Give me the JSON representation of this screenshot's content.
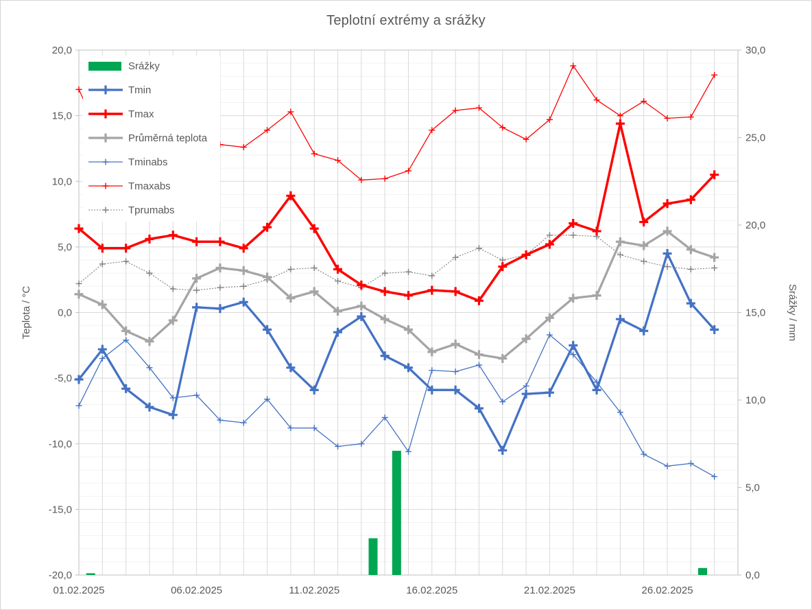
{
  "title": "Teplotní extrémy a srážky",
  "axes": {
    "y_left": {
      "title": "Teplota / °C",
      "min": -20,
      "max": 20,
      "major_step": 5,
      "minor_step": 1,
      "tick_labels": [
        "20,0",
        "15,0",
        "10,0",
        "5,0",
        "0,0",
        "-5,0",
        "-10,0",
        "-15,0",
        "-20,0"
      ]
    },
    "y_right": {
      "title": "Srážky / mm",
      "min": 0,
      "max": 30,
      "major_step": 5,
      "tick_labels": [
        "30,0",
        "25,0",
        "20,0",
        "15,0",
        "10,0",
        "5,0",
        "0,0"
      ]
    },
    "x": {
      "tick_labels": [
        "01.02.2025",
        "06.02.2025",
        "11.02.2025",
        "16.02.2025",
        "21.02.2025",
        "26.02.2025"
      ],
      "tick_days": [
        1,
        6,
        11,
        16,
        21,
        26
      ]
    }
  },
  "legend": [
    "Srážky",
    "Tmin",
    "Tmax",
    "Průměrná teplota",
    "Tminabs",
    "Tmaxabs",
    "Tprumabs"
  ],
  "colors": {
    "grid_major": "#d9d9d9",
    "grid_minor": "#f2f2f2",
    "axis_line": "#bfbfbf",
    "text": "#595959",
    "background": "#ffffff"
  },
  "chart_data": {
    "type": "combo",
    "categories": [
      "01.02.2025",
      "02.02.2025",
      "03.02.2025",
      "04.02.2025",
      "05.02.2025",
      "06.02.2025",
      "07.02.2025",
      "08.02.2025",
      "09.02.2025",
      "10.02.2025",
      "11.02.2025",
      "12.02.2025",
      "13.02.2025",
      "14.02.2025",
      "15.02.2025",
      "16.02.2025",
      "17.02.2025",
      "18.02.2025",
      "19.02.2025",
      "20.02.2025",
      "21.02.2025",
      "22.02.2025",
      "23.02.2025",
      "24.02.2025",
      "25.02.2025",
      "26.02.2025",
      "27.02.2025",
      "28.02.2025"
    ],
    "series": [
      {
        "name": "Srážky",
        "type": "bar",
        "axis": "right",
        "color": "#00a651",
        "marker": "none",
        "values": [
          0.1,
          0,
          0,
          0,
          0,
          0,
          0,
          0,
          0,
          0,
          0,
          0,
          2.1,
          7.1,
          0,
          0,
          0,
          0,
          0,
          0,
          0,
          0,
          0,
          0,
          0,
          0,
          0.4,
          0
        ]
      },
      {
        "name": "Tmin",
        "type": "line",
        "axis": "left",
        "color": "#4472c4",
        "width": 3.3,
        "marker": "plus",
        "values": [
          -5.1,
          -2.8,
          -5.8,
          -7.2,
          -7.8,
          0.4,
          0.3,
          0.8,
          -1.3,
          -4.2,
          -5.9,
          -1.5,
          -0.3,
          -3.3,
          -4.2,
          -5.9,
          -5.9,
          -7.3,
          -10.5,
          -6.2,
          -6.1,
          -2.5,
          -5.9,
          -0.5,
          -1.4,
          4.5,
          0.7,
          -1.3
        ]
      },
      {
        "name": "Tmax",
        "type": "line",
        "axis": "left",
        "color": "#ff0000",
        "width": 3.5,
        "marker": "plus",
        "values": [
          6.4,
          4.9,
          4.9,
          5.6,
          5.9,
          5.4,
          5.4,
          4.9,
          6.5,
          8.9,
          6.4,
          3.3,
          2.1,
          1.6,
          1.3,
          1.7,
          1.6,
          0.9,
          3.5,
          4.4,
          5.2,
          6.8,
          6.2,
          14.4,
          6.9,
          8.3,
          8.6,
          10.5
        ]
      },
      {
        "name": "Průměrná teplota",
        "type": "line",
        "axis": "left",
        "color": "#a5a5a5",
        "width": 3.3,
        "marker": "plus",
        "values": [
          1.4,
          0.6,
          -1.4,
          -2.2,
          -0.6,
          2.6,
          3.4,
          3.2,
          2.7,
          1.1,
          1.6,
          0.1,
          0.5,
          -0.5,
          -1.3,
          -3.0,
          -2.4,
          -3.2,
          -3.5,
          -2.0,
          -0.4,
          1.1,
          1.3,
          5.4,
          5.1,
          6.2,
          4.8,
          4.2
        ]
      },
      {
        "name": "Tminabs",
        "type": "line",
        "axis": "left",
        "color": "#4472c4",
        "width": 1.3,
        "marker": "plus",
        "values": [
          -7.1,
          -3.5,
          -2.1,
          -4.2,
          -6.5,
          -6.3,
          -8.2,
          -8.4,
          -6.6,
          -8.8,
          -8.8,
          -10.2,
          -10.0,
          -8.0,
          -10.6,
          -4.4,
          -4.5,
          -4.0,
          -6.8,
          -5.6,
          -1.7,
          -3.2,
          -5.3,
          -7.6,
          -10.8,
          -11.7,
          -11.5,
          -12.5
        ]
      },
      {
        "name": "Tmaxabs",
        "type": "line",
        "axis": "left",
        "color": "#ff0000",
        "width": 1.3,
        "marker": "plus",
        "values": [
          17.0,
          13.1,
          13.1,
          12.2,
          14.7,
          11.9,
          12.8,
          12.6,
          13.9,
          15.3,
          12.1,
          11.6,
          10.1,
          10.2,
          10.8,
          13.9,
          15.4,
          15.6,
          14.1,
          13.2,
          14.7,
          18.8,
          16.2,
          15.0,
          16.1,
          14.8,
          14.9,
          18.1
        ]
      },
      {
        "name": "Tprumabs",
        "type": "line",
        "axis": "left",
        "color": "#7f7f7f",
        "width": 1.1,
        "dash": "2 2",
        "marker": "plus",
        "values": [
          2.2,
          3.7,
          3.9,
          3.0,
          1.8,
          1.7,
          1.9,
          2.0,
          2.5,
          3.3,
          3.4,
          2.4,
          1.9,
          3.0,
          3.1,
          2.8,
          4.2,
          4.9,
          4.0,
          4.4,
          5.9,
          5.9,
          5.8,
          4.4,
          3.9,
          3.5,
          3.3,
          3.4
        ]
      }
    ],
    "ylim_left": [
      -20,
      20
    ],
    "ylim_right": [
      0,
      30
    ],
    "grid": true,
    "legend_position": "top-left-inside"
  }
}
